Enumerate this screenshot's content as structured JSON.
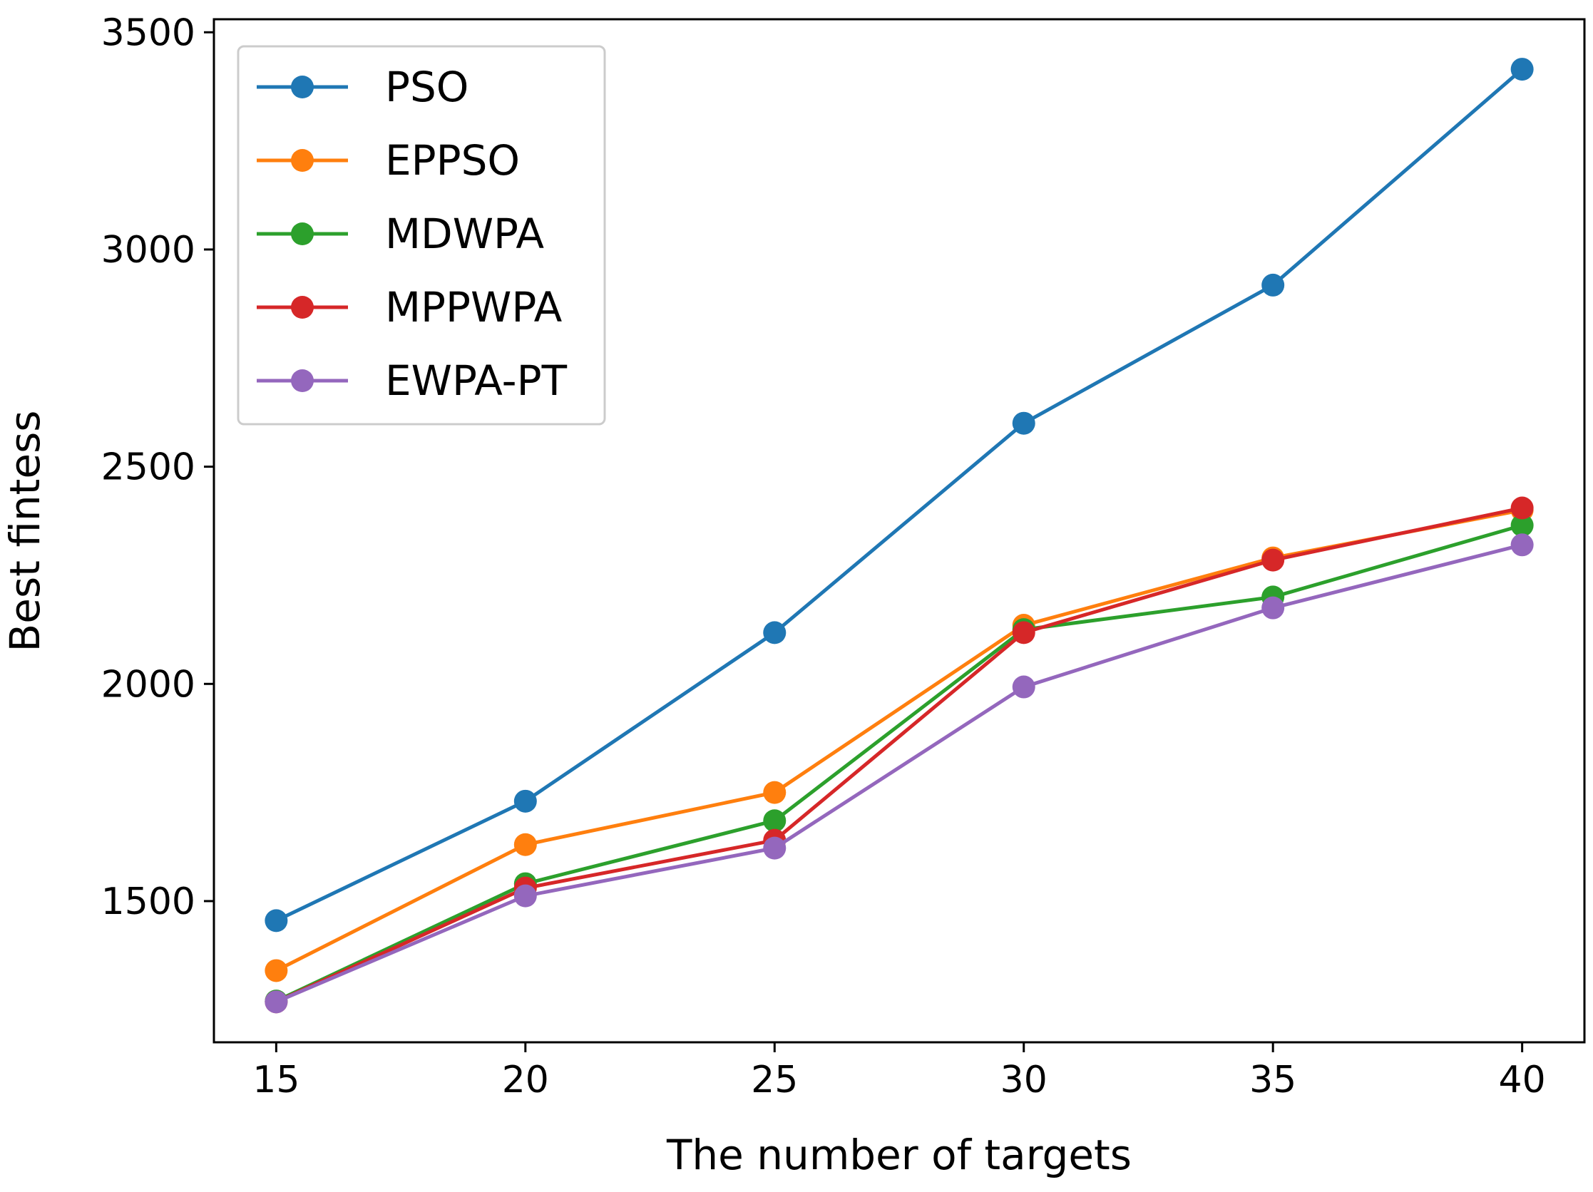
{
  "chart_data": {
    "type": "line",
    "title": "",
    "xlabel": "The number of targets",
    "ylabel": "Best fintess",
    "x": [
      15,
      20,
      25,
      30,
      35,
      40
    ],
    "xticks": [
      "15",
      "20",
      "25",
      "30",
      "35",
      "40"
    ],
    "yticks": [
      "1500",
      "2000",
      "2500",
      "3000",
      "3500"
    ],
    "xlim": [
      13.75,
      41.25
    ],
    "ylim": [
      1175,
      3530
    ],
    "grid": false,
    "legend_position": "top-left",
    "series": [
      {
        "name": "PSO",
        "color": "#1f77b4",
        "values": [
          1455,
          1730,
          2118,
          2600,
          2918,
          3415
        ]
      },
      {
        "name": "EPPSO",
        "color": "#ff7f0e",
        "values": [
          1340,
          1630,
          1750,
          2135,
          2290,
          2400
        ]
      },
      {
        "name": "MDWPA",
        "color": "#2ca02c",
        "values": [
          1270,
          1540,
          1685,
          2125,
          2200,
          2365
        ]
      },
      {
        "name": "MPPWPA",
        "color": "#d62728",
        "values": [
          1268,
          1530,
          1640,
          2118,
          2285,
          2405
        ]
      },
      {
        "name": "EWPA-PT",
        "color": "#9467bd",
        "values": [
          1268,
          1512,
          1622,
          1993,
          2175,
          2320
        ]
      }
    ]
  }
}
